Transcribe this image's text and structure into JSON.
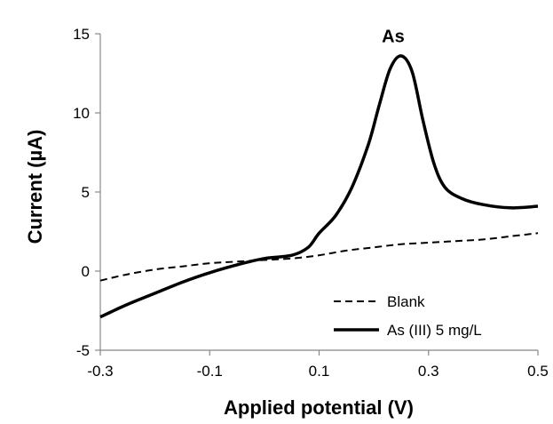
{
  "chart_data": {
    "type": "line",
    "xlabel": "Applied potential (V)",
    "ylabel": "Current (µA)",
    "xlim": [
      -0.3,
      0.5
    ],
    "ylim": [
      -5,
      15
    ],
    "x_ticks": [
      "-0.3",
      "-0.1",
      "0.1",
      "0.3",
      "0.5"
    ],
    "y_ticks": [
      "-5",
      "0",
      "5",
      "10",
      "15"
    ],
    "grid": false,
    "legend_position": "bottom-right",
    "annotations": [
      {
        "text": "As",
        "x": 0.25,
        "y": 14.8
      }
    ],
    "series": [
      {
        "name": "Blank",
        "style": "dashed",
        "color": "#000000",
        "x": [
          -0.3,
          -0.25,
          -0.2,
          -0.15,
          -0.1,
          -0.05,
          0.0,
          0.05,
          0.1,
          0.15,
          0.2,
          0.25,
          0.3,
          0.35,
          0.4,
          0.45,
          0.5
        ],
        "y": [
          -0.6,
          -0.2,
          0.1,
          0.3,
          0.5,
          0.6,
          0.7,
          0.8,
          1.0,
          1.3,
          1.5,
          1.7,
          1.8,
          1.9,
          2.0,
          2.2,
          2.4
        ]
      },
      {
        "name": "As (III) 5 mg/L",
        "style": "solid",
        "color": "#000000",
        "x": [
          -0.3,
          -0.25,
          -0.2,
          -0.15,
          -0.1,
          -0.05,
          0.0,
          0.05,
          0.08,
          0.1,
          0.13,
          0.16,
          0.19,
          0.21,
          0.23,
          0.25,
          0.27,
          0.29,
          0.31,
          0.33,
          0.36,
          0.4,
          0.45,
          0.5
        ],
        "y": [
          -2.9,
          -2.1,
          -1.4,
          -0.7,
          -0.1,
          0.4,
          0.8,
          1.0,
          1.5,
          2.4,
          3.5,
          5.3,
          8.0,
          10.5,
          12.8,
          13.6,
          12.6,
          9.5,
          6.8,
          5.3,
          4.6,
          4.2,
          4.0,
          4.1
        ]
      }
    ]
  }
}
